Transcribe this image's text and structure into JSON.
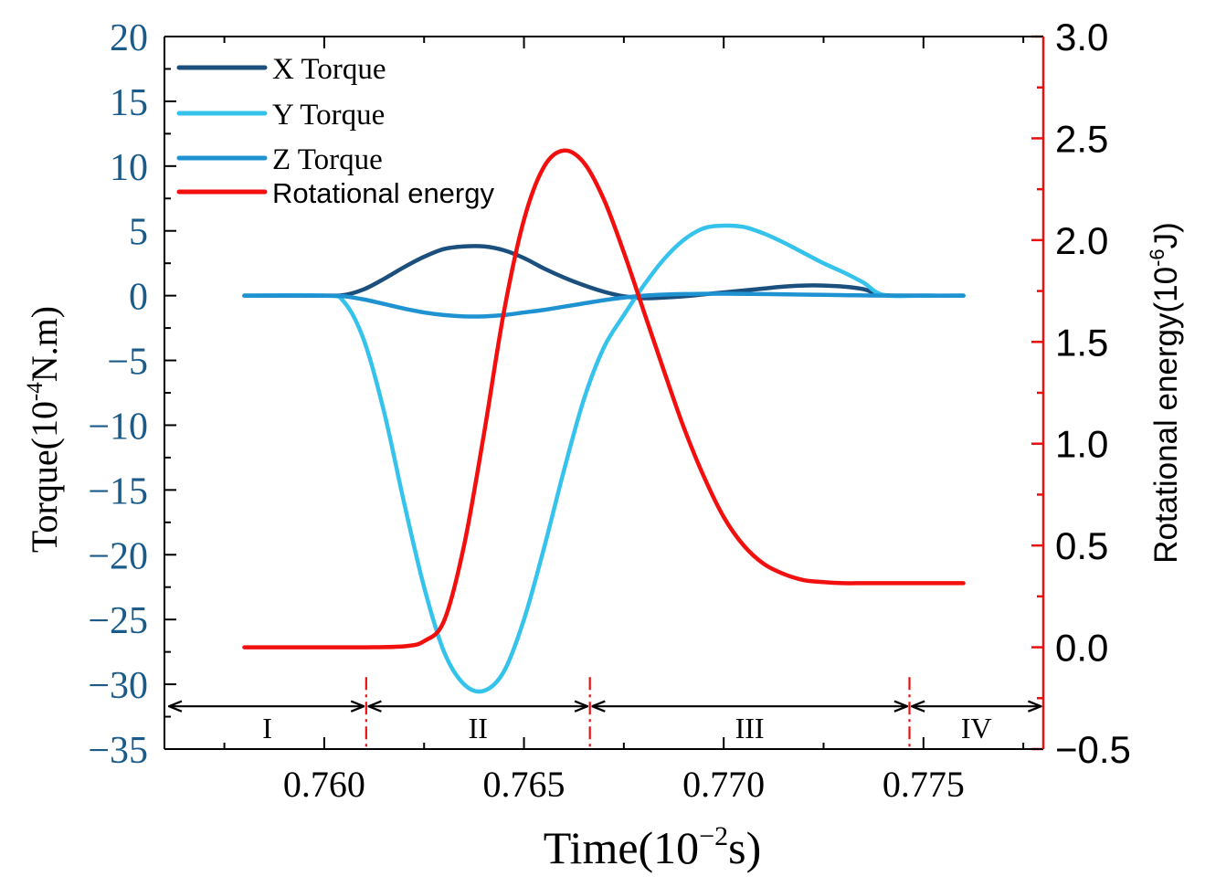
{
  "chart_data": {
    "type": "line",
    "x_label_prefix": "Time(10",
    "x_label_exp": "−2",
    "x_label_suffix": "s)",
    "y_left_label_prefix": "Torque(10",
    "y_left_label_exp": "-4",
    "y_left_label_suffix": "N.m)",
    "y_right_label_prefix": "Rotational energy(10",
    "y_right_label_exp": "-6",
    "y_right_label_suffix": "J)",
    "xlim": [
      0.756,
      0.778
    ],
    "ylim_left": [
      -35,
      20
    ],
    "ylim_right": [
      -0.5,
      3.0
    ],
    "x_ticks": [
      0.76,
      0.765,
      0.77,
      0.775
    ],
    "x_tick_labels": [
      "0.760",
      "0.765",
      "0.770",
      "0.775"
    ],
    "y_left_ticks": [
      20,
      15,
      10,
      5,
      0,
      -5,
      -10,
      -15,
      -20,
      -25,
      -30,
      -35
    ],
    "y_left_tick_labels": [
      "20",
      "15",
      "10",
      "5",
      "0",
      "−5",
      "−10",
      "−15",
      "−20",
      "−25",
      "−30",
      "−35"
    ],
    "y_right_ticks": [
      3.0,
      2.5,
      2.0,
      1.5,
      1.0,
      0.5,
      0.0,
      -0.5
    ],
    "y_right_tick_labels": [
      "3.0",
      "2.5",
      "2.0",
      "1.5",
      "1.0",
      "0.5",
      "0.0",
      "−0.5"
    ],
    "colors": {
      "left_axis": "#1a5b8a",
      "right_axis": "#e8100f",
      "x_torque": "#1b4f7e",
      "y_torque": "#35c3ec",
      "z_torque": "#1f93d2",
      "rotational_energy": "#f2100f",
      "stage_arrow": "#000000",
      "stage_divider": "#e8100f"
    },
    "series": [
      {
        "key": "x_torque",
        "name": "X Torque",
        "axis": "left",
        "x": [
          0.758,
          0.76,
          0.7605,
          0.761,
          0.7615,
          0.762,
          0.7625,
          0.763,
          0.7635,
          0.764,
          0.7645,
          0.765,
          0.7655,
          0.766,
          0.7665,
          0.767,
          0.7675,
          0.768,
          0.7685,
          0.769,
          0.7695,
          0.77,
          0.7705,
          0.771,
          0.7715,
          0.772,
          0.7725,
          0.773,
          0.7735,
          0.774,
          0.775,
          0.776
        ],
        "values": [
          0,
          0,
          0.05,
          0.5,
          1.3,
          2.2,
          3.0,
          3.6,
          3.8,
          3.8,
          3.5,
          2.9,
          2.1,
          1.4,
          0.8,
          0.3,
          -0.05,
          -0.2,
          -0.15,
          -0.05,
          0.1,
          0.25,
          0.4,
          0.55,
          0.7,
          0.78,
          0.78,
          0.7,
          0.5,
          0.05,
          0,
          0
        ]
      },
      {
        "key": "y_torque",
        "name": "Y Torque",
        "axis": "left",
        "x": [
          0.758,
          0.76,
          0.7605,
          0.761,
          0.7615,
          0.762,
          0.7625,
          0.763,
          0.7635,
          0.764,
          0.7645,
          0.765,
          0.7655,
          0.766,
          0.7665,
          0.767,
          0.7675,
          0.768,
          0.7685,
          0.769,
          0.7695,
          0.77,
          0.7705,
          0.771,
          0.7715,
          0.772,
          0.7725,
          0.773,
          0.7735,
          0.774,
          0.775,
          0.776
        ],
        "values": [
          0,
          0,
          -0.5,
          -3.5,
          -9.0,
          -16.0,
          -22.5,
          -27.5,
          -30.0,
          -30.5,
          -29.0,
          -25.0,
          -19.5,
          -13.5,
          -8.0,
          -4.0,
          -1.5,
          0.8,
          2.8,
          4.3,
          5.2,
          5.4,
          5.3,
          4.8,
          4.1,
          3.3,
          2.5,
          1.8,
          1.0,
          0.05,
          0,
          0
        ]
      },
      {
        "key": "z_torque",
        "name": "Z Torque",
        "axis": "left",
        "x": [
          0.758,
          0.76,
          0.7605,
          0.761,
          0.7615,
          0.762,
          0.7625,
          0.763,
          0.7635,
          0.764,
          0.7645,
          0.765,
          0.7655,
          0.766,
          0.7665,
          0.767,
          0.7675,
          0.768,
          0.7685,
          0.769,
          0.77,
          0.771,
          0.772,
          0.773,
          0.774,
          0.776
        ],
        "values": [
          0,
          0,
          -0.05,
          -0.3,
          -0.65,
          -1.0,
          -1.3,
          -1.5,
          -1.6,
          -1.6,
          -1.5,
          -1.3,
          -1.1,
          -0.85,
          -0.6,
          -0.35,
          -0.15,
          0,
          0.08,
          0.12,
          0.15,
          0.12,
          0.08,
          0.04,
          0,
          0
        ]
      },
      {
        "key": "rotational_energy",
        "name": "Rotational energy",
        "axis": "right",
        "x": [
          0.758,
          0.76,
          0.761,
          0.762,
          0.7625,
          0.763,
          0.7635,
          0.764,
          0.7645,
          0.765,
          0.7655,
          0.766,
          0.7665,
          0.767,
          0.7675,
          0.768,
          0.7685,
          0.769,
          0.7695,
          0.77,
          0.7705,
          0.771,
          0.7715,
          0.772,
          0.7725,
          0.773,
          0.7735,
          0.774,
          0.775,
          0.776
        ],
        "values": [
          0.0,
          0.0,
          0.0,
          0.005,
          0.03,
          0.13,
          0.5,
          1.05,
          1.65,
          2.1,
          2.36,
          2.44,
          2.38,
          2.2,
          1.94,
          1.65,
          1.36,
          1.08,
          0.84,
          0.64,
          0.5,
          0.41,
          0.36,
          0.33,
          0.32,
          0.315,
          0.315,
          0.315,
          0.315,
          0.315
        ]
      }
    ],
    "stage_boundaries": [
      0.7561,
      0.76105,
      0.76665,
      0.77465,
      0.778
    ],
    "stages": [
      "I",
      "II",
      "III",
      "IV"
    ],
    "stage_arrow_y_left": -31.7,
    "legend_placement": "top-left"
  }
}
